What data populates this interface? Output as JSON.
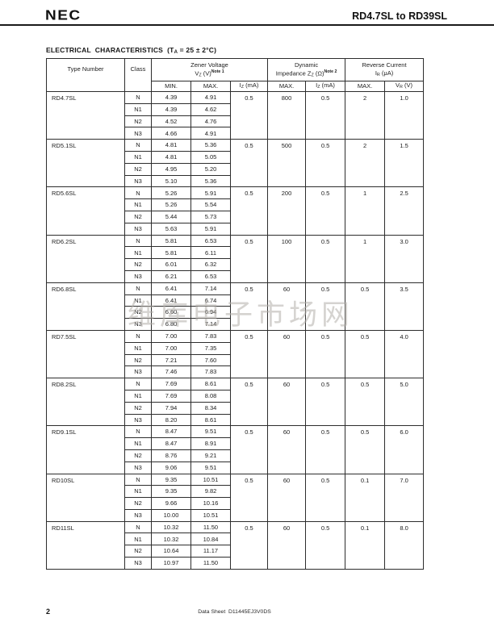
{
  "page": {
    "brand": "NEC",
    "doc_title": "RD4.7SL to RD39SL",
    "page_number": "2",
    "footer": "Data Sheet  D11445EJ3V0DS",
    "watermark": "维库电子市场网"
  },
  "section": {
    "title_pre": "ELECTRICAL  CHARACTERISTICS  (T",
    "title_sub": "A",
    "title_post": " = 25 ± 2°C)"
  },
  "table": {
    "headers": {
      "type_number": "Type Number",
      "class_label": "Class",
      "zener": {
        "line1": "Zener Voltage",
        "sym": "V",
        "sub": "Z",
        "unit": " (V)",
        "note": "Note 1"
      },
      "dynamic": {
        "line1": "Dynamic",
        "sym": "Impedance Z",
        "sub": "Z",
        "unit": " (Ω)",
        "note": "Note 2"
      },
      "reverse": {
        "line1": "Reverse Current",
        "sym": "I",
        "sub": "R",
        "unit": " (μA)"
      },
      "sub": {
        "min": "MIN.",
        "max": "MAX.",
        "iz_sym": "I",
        "iz_sub": "Z",
        "iz_unit": " (mA)",
        "vr_sym": "V",
        "vr_sub": "R",
        "vr_unit": " (V)"
      }
    },
    "groups": [
      {
        "type": "RD4.7SL",
        "iz": "0.5",
        "zz_max": "800",
        "zz_iz": "0.5",
        "ir_max": "2",
        "vr": "1.0",
        "rows": [
          {
            "cls": "N",
            "min": "4.39",
            "max": "4.91"
          },
          {
            "cls": "N1",
            "min": "4.39",
            "max": "4.62"
          },
          {
            "cls": "N2",
            "min": "4.52",
            "max": "4.76"
          },
          {
            "cls": "N3",
            "min": "4.66",
            "max": "4.91"
          }
        ]
      },
      {
        "type": "RD5.1SL",
        "iz": "0.5",
        "zz_max": "500",
        "zz_iz": "0.5",
        "ir_max": "2",
        "vr": "1.5",
        "rows": [
          {
            "cls": "N",
            "min": "4.81",
            "max": "5.36"
          },
          {
            "cls": "N1",
            "min": "4.81",
            "max": "5.05"
          },
          {
            "cls": "N2",
            "min": "4.95",
            "max": "5.20"
          },
          {
            "cls": "N3",
            "min": "5.10",
            "max": "5.36"
          }
        ]
      },
      {
        "type": "RD5.6SL",
        "iz": "0.5",
        "zz_max": "200",
        "zz_iz": "0.5",
        "ir_max": "1",
        "vr": "2.5",
        "rows": [
          {
            "cls": "N",
            "min": "5.26",
            "max": "5.91"
          },
          {
            "cls": "N1",
            "min": "5.26",
            "max": "5.54"
          },
          {
            "cls": "N2",
            "min": "5.44",
            "max": "5.73"
          },
          {
            "cls": "N3",
            "min": "5.63",
            "max": "5.91"
          }
        ]
      },
      {
        "type": "RD6.2SL",
        "iz": "0.5",
        "zz_max": "100",
        "zz_iz": "0.5",
        "ir_max": "1",
        "vr": "3.0",
        "rows": [
          {
            "cls": "N",
            "min": "5.81",
            "max": "6.53"
          },
          {
            "cls": "N1",
            "min": "5.81",
            "max": "6.11"
          },
          {
            "cls": "N2",
            "min": "6.01",
            "max": "6.32"
          },
          {
            "cls": "N3",
            "min": "6.21",
            "max": "6.53"
          }
        ]
      },
      {
        "type": "RD6.8SL",
        "iz": "0.5",
        "zz_max": "60",
        "zz_iz": "0.5",
        "ir_max": "0.5",
        "vr": "3.5",
        "rows": [
          {
            "cls": "N",
            "min": "6.41",
            "max": "7.14"
          },
          {
            "cls": "N1",
            "min": "6.41",
            "max": "6.74"
          },
          {
            "cls": "N2",
            "min": "6.60",
            "max": "6.94"
          },
          {
            "cls": "N3",
            "min": "6.80",
            "max": "7.14"
          }
        ]
      },
      {
        "type": "RD7.5SL",
        "iz": "0.5",
        "zz_max": "60",
        "zz_iz": "0.5",
        "ir_max": "0.5",
        "vr": "4.0",
        "rows": [
          {
            "cls": "N",
            "min": "7.00",
            "max": "7.83"
          },
          {
            "cls": "N1",
            "min": "7.00",
            "max": "7.35"
          },
          {
            "cls": "N2",
            "min": "7.21",
            "max": "7.60"
          },
          {
            "cls": "N3",
            "min": "7.46",
            "max": "7.83"
          }
        ]
      },
      {
        "type": "RD8.2SL",
        "iz": "0.5",
        "zz_max": "60",
        "zz_iz": "0.5",
        "ir_max": "0.5",
        "vr": "5.0",
        "rows": [
          {
            "cls": "N",
            "min": "7.69",
            "max": "8.61"
          },
          {
            "cls": "N1",
            "min": "7.69",
            "max": "8.08"
          },
          {
            "cls": "N2",
            "min": "7.94",
            "max": "8.34"
          },
          {
            "cls": "N3",
            "min": "8.20",
            "max": "8.61"
          }
        ]
      },
      {
        "type": "RD9.1SL",
        "iz": "0.5",
        "zz_max": "60",
        "zz_iz": "0.5",
        "ir_max": "0.5",
        "vr": "6.0",
        "rows": [
          {
            "cls": "N",
            "min": "8.47",
            "max": "9.51"
          },
          {
            "cls": "N1",
            "min": "8.47",
            "max": "8.91"
          },
          {
            "cls": "N2",
            "min": "8.76",
            "max": "9.21"
          },
          {
            "cls": "N3",
            "min": "9.06",
            "max": "9.51"
          }
        ]
      },
      {
        "type": "RD10SL",
        "iz": "0.5",
        "zz_max": "60",
        "zz_iz": "0.5",
        "ir_max": "0.1",
        "vr": "7.0",
        "rows": [
          {
            "cls": "N",
            "min": "9.35",
            "max": "10.51"
          },
          {
            "cls": "N1",
            "min": "9.35",
            "max": "9.82"
          },
          {
            "cls": "N2",
            "min": "9.66",
            "max": "10.16"
          },
          {
            "cls": "N3",
            "min": "10.00",
            "max": "10.51"
          }
        ]
      },
      {
        "type": "RD11SL",
        "iz": "0.5",
        "zz_max": "60",
        "zz_iz": "0.5",
        "ir_max": "0.1",
        "vr": "8.0",
        "rows": [
          {
            "cls": "N",
            "min": "10.32",
            "max": "11.50"
          },
          {
            "cls": "N1",
            "min": "10.32",
            "max": "10.84"
          },
          {
            "cls": "N2",
            "min": "10.64",
            "max": "11.17"
          },
          {
            "cls": "N3",
            "min": "10.97",
            "max": "11.50"
          }
        ]
      }
    ]
  }
}
